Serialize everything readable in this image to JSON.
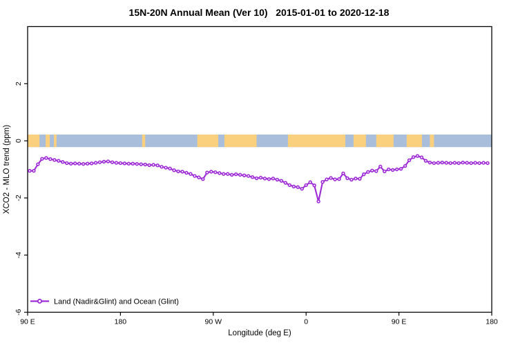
{
  "chart_data": {
    "type": "line",
    "title": "15N-20N Annual Mean (Ver 10)   2015-01-01 to 2020-12-18",
    "xlabel": "Longitude (deg E)",
    "ylabel": "XCO2 - MLO trend (ppm)",
    "xlim": [
      90,
      540
    ],
    "ylim": [
      -6,
      4
    ],
    "grid": false,
    "x_ticks": [
      {
        "lon": 90,
        "label": "90 E"
      },
      {
        "lon": 180,
        "label": "180"
      },
      {
        "lon": 270,
        "label": "90 W"
      },
      {
        "lon": 360,
        "label": "0"
      },
      {
        "lon": 450,
        "label": "90 E"
      },
      {
        "lon": 540,
        "label": "180"
      }
    ],
    "y_ticks": [
      {
        "value": 2,
        "label": "2"
      },
      {
        "value": 0,
        "label": "0"
      },
      {
        "value": -2,
        "label": "-2"
      },
      {
        "value": -4,
        "label": "-4"
      },
      {
        "value": -6,
        "label": "-6"
      }
    ],
    "legend": {
      "position": "bottom-left",
      "entries": [
        {
          "label": "Land (Nadir&Glint) and Ocean (Glint)",
          "color": "#9D2BD6",
          "marker": "open-circle"
        }
      ]
    },
    "series": [
      {
        "name": "Land (Nadir&Glint) and Ocean (Glint)",
        "color": "#9D2BD6",
        "marker": "open-circle",
        "points": [
          [
            92,
            -1.05
          ],
          [
            96,
            -1.05
          ],
          [
            100,
            -0.82
          ],
          [
            104,
            -0.63
          ],
          [
            108,
            -0.6
          ],
          [
            112,
            -0.64
          ],
          [
            116,
            -0.67
          ],
          [
            120,
            -0.7
          ],
          [
            124,
            -0.74
          ],
          [
            128,
            -0.78
          ],
          [
            132,
            -0.8
          ],
          [
            136,
            -0.79
          ],
          [
            140,
            -0.8
          ],
          [
            144,
            -0.81
          ],
          [
            148,
            -0.8
          ],
          [
            152,
            -0.79
          ],
          [
            156,
            -0.77
          ],
          [
            160,
            -0.75
          ],
          [
            164,
            -0.73
          ],
          [
            168,
            -0.72
          ],
          [
            172,
            -0.75
          ],
          [
            176,
            -0.77
          ],
          [
            180,
            -0.78
          ],
          [
            184,
            -0.79
          ],
          [
            188,
            -0.8
          ],
          [
            192,
            -0.8
          ],
          [
            196,
            -0.81
          ],
          [
            200,
            -0.82
          ],
          [
            204,
            -0.83
          ],
          [
            208,
            -0.85
          ],
          [
            212,
            -0.84
          ],
          [
            216,
            -0.86
          ],
          [
            220,
            -0.91
          ],
          [
            224,
            -0.94
          ],
          [
            228,
            -0.97
          ],
          [
            232,
            -1.03
          ],
          [
            236,
            -1.07
          ],
          [
            240,
            -1.08
          ],
          [
            244,
            -1.12
          ],
          [
            248,
            -1.16
          ],
          [
            252,
            -1.23
          ],
          [
            256,
            -1.28
          ],
          [
            260,
            -1.34
          ],
          [
            264,
            -1.11
          ],
          [
            268,
            -1.08
          ],
          [
            272,
            -1.1
          ],
          [
            276,
            -1.13
          ],
          [
            280,
            -1.16
          ],
          [
            284,
            -1.16
          ],
          [
            288,
            -1.19
          ],
          [
            292,
            -1.17
          ],
          [
            296,
            -1.19
          ],
          [
            300,
            -1.21
          ],
          [
            304,
            -1.23
          ],
          [
            308,
            -1.27
          ],
          [
            312,
            -1.31
          ],
          [
            316,
            -1.29
          ],
          [
            320,
            -1.32
          ],
          [
            324,
            -1.34
          ],
          [
            328,
            -1.32
          ],
          [
            332,
            -1.36
          ],
          [
            336,
            -1.4
          ],
          [
            340,
            -1.47
          ],
          [
            344,
            -1.55
          ],
          [
            348,
            -1.6
          ],
          [
            352,
            -1.62
          ],
          [
            356,
            -1.68
          ],
          [
            360,
            -1.55
          ],
          [
            364,
            -1.45
          ],
          [
            368,
            -1.56
          ],
          [
            372,
            -2.12
          ],
          [
            376,
            -1.44
          ],
          [
            380,
            -1.35
          ],
          [
            384,
            -1.3
          ],
          [
            388,
            -1.35
          ],
          [
            392,
            -1.34
          ],
          [
            396,
            -1.14
          ],
          [
            400,
            -1.31
          ],
          [
            404,
            -1.36
          ],
          [
            408,
            -1.32
          ],
          [
            412,
            -1.33
          ],
          [
            416,
            -1.17
          ],
          [
            420,
            -1.09
          ],
          [
            424,
            -1.04
          ],
          [
            428,
            -1.06
          ],
          [
            432,
            -0.9
          ],
          [
            436,
            -1.07
          ],
          [
            440,
            -1.0
          ],
          [
            444,
            -1.02
          ],
          [
            448,
            -1.0
          ],
          [
            452,
            -0.98
          ],
          [
            456,
            -0.88
          ],
          [
            460,
            -0.68
          ],
          [
            464,
            -0.57
          ],
          [
            468,
            -0.53
          ],
          [
            472,
            -0.58
          ],
          [
            476,
            -0.7
          ],
          [
            480,
            -0.76
          ],
          [
            484,
            -0.78
          ],
          [
            488,
            -0.77
          ],
          [
            492,
            -0.76
          ],
          [
            496,
            -0.77
          ],
          [
            500,
            -0.78
          ],
          [
            504,
            -0.77
          ],
          [
            508,
            -0.78
          ],
          [
            512,
            -0.76
          ],
          [
            516,
            -0.77
          ],
          [
            520,
            -0.78
          ],
          [
            524,
            -0.77
          ],
          [
            528,
            -0.78
          ],
          [
            532,
            -0.77
          ],
          [
            536,
            -0.78
          ]
        ]
      }
    ],
    "map_band": {
      "description": "land/ocean strip of the 15N-20N latitude band drawn along the y=0 line",
      "ocean_color": "#A9BEDB",
      "land_color": "#FAD07E",
      "band_value_extent": [
        0.22,
        -0.22
      ],
      "land_segments_lon": [
        [
          90,
          101.5
        ],
        [
          107.5,
          111.5
        ],
        [
          115.5,
          118
        ],
        [
          201,
          204
        ],
        [
          254.5,
          274.8
        ],
        [
          280.8,
          312
        ],
        [
          342.4,
          398
        ],
        [
          406,
          418
        ],
        [
          428,
          444.8
        ],
        [
          457.5,
          472.3
        ],
        [
          480,
          484
        ]
      ]
    }
  }
}
